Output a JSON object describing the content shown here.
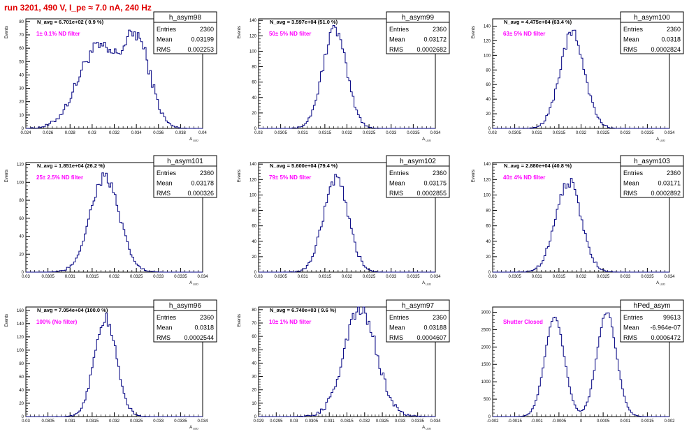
{
  "header": {
    "title": "run 3201,   490 V, I_pe ≈ 7.0 nA, 240 Hz"
  },
  "colors": {
    "title": "#e00000",
    "annotation": "#ff00ff",
    "histogram": "#000080",
    "frame": "#000000"
  },
  "chart_data": [
    {
      "type": "histogram",
      "name": "h_asym98",
      "navg": "N_avg = 6.701e+02  ( 0.9 %)",
      "note": "1± 0.1% ND filter",
      "stats": {
        "entries": "2360",
        "mean": "0.03199",
        "rms": "0.002253"
      },
      "xlim": [
        0.024,
        0.04
      ],
      "xticks": [
        "0.024",
        "0.026",
        "0.028",
        "0.03",
        "0.032",
        "0.034",
        "0.036",
        "0.038",
        "0.04"
      ],
      "ylim": [
        0,
        82
      ],
      "yticks": [
        "0",
        "10",
        "20",
        "30",
        "40",
        "50",
        "60",
        "70",
        "80"
      ],
      "xlabel": "A_{LED}",
      "ylabel": "Events",
      "shape": {
        "peaks": [
          [
            0.0305,
            0.0018,
            60
          ],
          [
            0.0341,
            0.0012,
            62
          ]
        ]
      }
    },
    {
      "type": "histogram",
      "name": "h_asym99",
      "navg": "N_avg = 3.597e+04 (51.0 %)",
      "note": "50± 5% ND filter",
      "stats": {
        "entries": "2360",
        "mean": "0.03172",
        "rms": "0.0002682"
      },
      "xlim": [
        0.03,
        0.034
      ],
      "xticks": [
        "0.03",
        "0.0305",
        "0.031",
        "0.0315",
        "0.032",
        "0.0325",
        "0.033",
        "0.0335",
        "0.034"
      ],
      "ylim": [
        0,
        142
      ],
      "yticks": [
        "0",
        "20",
        "40",
        "60",
        "80",
        "100",
        "120",
        "140"
      ],
      "xlabel": "A_{LED}",
      "ylabel": "Events",
      "shape": {
        "peaks": [
          [
            0.03172,
            0.00027,
            128
          ]
        ]
      }
    },
    {
      "type": "histogram",
      "name": "h_asym100",
      "navg": "N_avg = 4.475e+04 (63.4 %)",
      "note": "63± 5% ND filter",
      "stats": {
        "entries": "2360",
        "mean": "0.0318",
        "rms": "0.0002824"
      },
      "xlim": [
        0.03,
        0.034
      ],
      "xticks": [
        "0.03",
        "0.0305",
        "0.031",
        "0.0315",
        "0.032",
        "0.0325",
        "0.033",
        "0.0335",
        "0.034"
      ],
      "ylim": [
        0,
        150
      ],
      "yticks": [
        "0",
        "20",
        "40",
        "60",
        "80",
        "100",
        "120",
        "140"
      ],
      "xlabel": "A_{LED}",
      "ylabel": "Events",
      "shape": {
        "peaks": [
          [
            0.0318,
            0.00028,
            130
          ]
        ]
      }
    },
    {
      "type": "histogram",
      "name": "h_asym101",
      "navg": "N_avg = 1.851e+04 (26.2 %)",
      "note": "25± 2.5% ND filter",
      "stats": {
        "entries": "2360",
        "mean": "0.03178",
        "rms": "0.000326"
      },
      "xlim": [
        0.03,
        0.034
      ],
      "xticks": [
        "0.03",
        "0.0305",
        "0.031",
        "0.0315",
        "0.032",
        "0.0325",
        "0.033",
        "0.0335",
        "0.034"
      ],
      "ylim": [
        0,
        122
      ],
      "yticks": [
        "0",
        "20",
        "40",
        "60",
        "80",
        "100",
        "120"
      ],
      "xlabel": "A_{LED}",
      "ylabel": "Events",
      "shape": {
        "peaks": [
          [
            0.03178,
            0.00033,
            106
          ]
        ]
      }
    },
    {
      "type": "histogram",
      "name": "h_asym102",
      "navg": "N_avg = 5.600e+04 (79.4 %)",
      "note": "79± 5% ND filter",
      "stats": {
        "entries": "2360",
        "mean": "0.03175",
        "rms": "0.0002855"
      },
      "xlim": [
        0.03,
        0.034
      ],
      "xticks": [
        "0.03",
        "0.0305",
        "0.031",
        "0.0315",
        "0.032",
        "0.0325",
        "0.033",
        "0.0335",
        "0.034"
      ],
      "ylim": [
        0,
        142
      ],
      "yticks": [
        "0",
        "20",
        "40",
        "60",
        "80",
        "100",
        "120",
        "140"
      ],
      "xlabel": "A_{LED}",
      "ylabel": "Events",
      "shape": {
        "peaks": [
          [
            0.03175,
            0.00028,
            120
          ]
        ]
      }
    },
    {
      "type": "histogram",
      "name": "h_asym103",
      "navg": "N_avg = 2.880e+04 (40.8 %)",
      "note": "40± 4% ND filter",
      "stats": {
        "entries": "2360",
        "mean": "0.03171",
        "rms": "0.0002892"
      },
      "xlim": [
        0.03,
        0.034
      ],
      "xticks": [
        "0.03",
        "0.0305",
        "0.031",
        "0.0315",
        "0.032",
        "0.0325",
        "0.033",
        "0.0335",
        "0.034"
      ],
      "ylim": [
        0,
        142
      ],
      "yticks": [
        "0",
        "20",
        "40",
        "60",
        "80",
        "100",
        "120",
        "140"
      ],
      "xlabel": "A_{LED}",
      "ylabel": "Events",
      "shape": {
        "peaks": [
          [
            0.03171,
            0.00029,
            118
          ]
        ]
      }
    },
    {
      "type": "histogram",
      "name": "h_asym96",
      "navg": "N_avg = 7.054e+04 (100.0 %)",
      "note": "100% (No filter)",
      "stats": {
        "entries": "2360",
        "mean": "0.0318",
        "rms": "0.0002544"
      },
      "xlim": [
        0.03,
        0.034
      ],
      "xticks": [
        "0.03",
        "0.0305",
        "0.031",
        "0.0315",
        "0.032",
        "0.0325",
        "0.033",
        "0.0335",
        "0.034"
      ],
      "ylim": [
        0,
        165
      ],
      "yticks": [
        "0",
        "20",
        "40",
        "60",
        "80",
        "100",
        "120",
        "140",
        "160"
      ],
      "xlabel": "A_{LED}",
      "ylabel": "Events",
      "shape": {
        "peaks": [
          [
            0.0318,
            0.00025,
            148
          ]
        ]
      }
    },
    {
      "type": "histogram",
      "name": "h_asym97",
      "navg": "N_avg = 6.740e+03 ( 9.6 %)",
      "note": "10± 1% ND filter",
      "stats": {
        "entries": "2360",
        "mean": "0.03188",
        "rms": "0.0004607"
      },
      "xlim": [
        0.029,
        0.034
      ],
      "xticks": [
        "0.029",
        "0.0295",
        "0.03",
        "0.0305",
        "0.031",
        "0.0315",
        "0.032",
        "0.0325",
        "0.033",
        "0.0335",
        "0.034"
      ],
      "ylim": [
        0,
        82
      ],
      "yticks": [
        "0",
        "10",
        "20",
        "30",
        "40",
        "50",
        "60",
        "70",
        "80"
      ],
      "xlabel": "A_{LED}",
      "ylabel": "Events",
      "shape": {
        "peaks": [
          [
            0.03188,
            0.00046,
            80
          ]
        ]
      }
    },
    {
      "type": "histogram",
      "name": "hPed_asym",
      "navg": "",
      "note": "Shutter Closed",
      "stats": {
        "entries": "99613",
        "mean": "-6.964e-07",
        "rms": "0.0006472"
      },
      "xlim": [
        -0.002,
        0.002
      ],
      "xticks": [
        "-0.002",
        "-0.0015",
        "-0.001",
        "-0.0005",
        "0",
        "0.0005",
        "0.001",
        "0.0015",
        "0.002"
      ],
      "ylim": [
        0,
        3150
      ],
      "yticks": [
        "0",
        "500",
        "1000",
        "1500",
        "2000",
        "2500",
        "3000"
      ],
      "xlabel": "",
      "ylabel": "",
      "shape": {
        "peaks": [
          [
            -0.0006,
            0.00022,
            2850
          ],
          [
            0.00058,
            0.00022,
            3000
          ]
        ]
      }
    }
  ]
}
